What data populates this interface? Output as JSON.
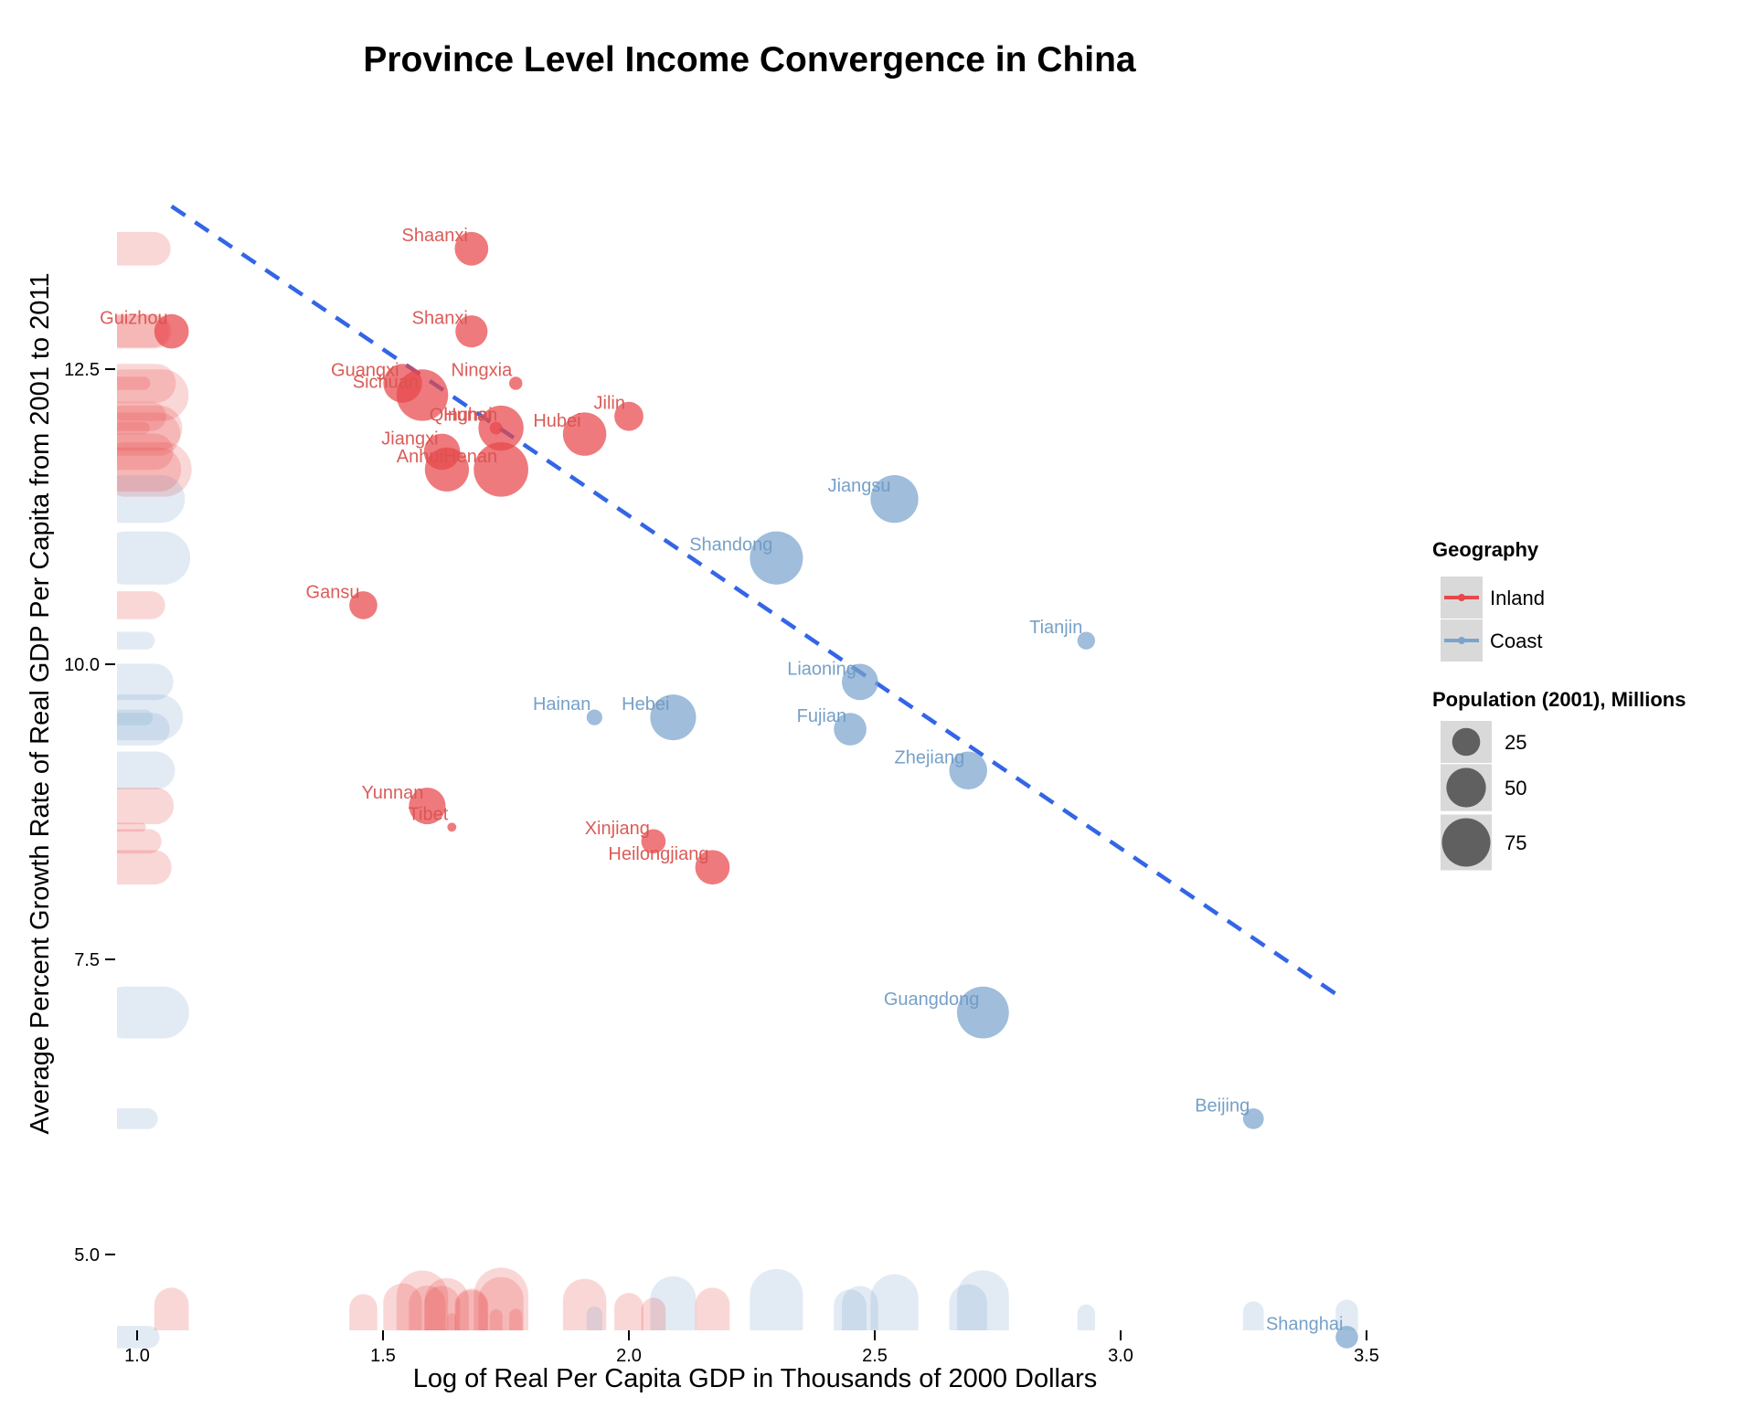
{
  "chart_data": {
    "type": "scatter",
    "title": "Province Level Income Convergence in China",
    "xlabel": "Log of Real Per Capita GDP in Thousands of 2000 Dollars",
    "ylabel": "Average Percent Growth Rate of Real GDP Per Capita from 2001 to 2011",
    "xlim": [
      0.95,
      3.5
    ],
    "ylim": [
      4.4,
      13.65
    ],
    "x_ticks": [
      "1.0",
      "1.5",
      "2.0",
      "2.5",
      "3.0",
      "3.5"
    ],
    "x_tick_values": [
      1.0,
      1.5,
      2.0,
      2.5,
      3.0,
      3.5
    ],
    "y_ticks": [
      "5.0",
      "7.5",
      "10.0",
      "12.5"
    ],
    "y_tick_values": [
      5.0,
      7.5,
      10.0,
      12.5
    ],
    "grid": false,
    "legend_position": "right",
    "colors": {
      "Inland": "#e8474b",
      "Coast": "#7ba4cd",
      "trend": "#3366e6"
    },
    "legend": {
      "color_title": "Geography",
      "color_items": [
        "Inland",
        "Coast"
      ],
      "size_title": "Population (2001), Millions",
      "size_items": [
        "25",
        "50",
        "75"
      ],
      "size_values": [
        25,
        50,
        75
      ]
    },
    "trend_line": {
      "style": "dashed",
      "x": [
        1.07,
        3.44
      ],
      "y": [
        13.88,
        7.2
      ]
    },
    "points": [
      {
        "label": "Shaanxi",
        "x": 1.68,
        "y": 13.52,
        "pop": 36,
        "region": "Inland"
      },
      {
        "label": "Shanxi",
        "x": 1.68,
        "y": 12.82,
        "pop": 33,
        "region": "Inland"
      },
      {
        "label": "Guizhou",
        "x": 1.07,
        "y": 12.82,
        "pop": 38,
        "region": "Inland"
      },
      {
        "label": "Ningxia",
        "x": 1.77,
        "y": 12.38,
        "pop": 5.6,
        "region": "Inland"
      },
      {
        "label": "Jilin",
        "x": 2.0,
        "y": 12.1,
        "pop": 27,
        "region": "Inland"
      },
      {
        "label": "Guangxi",
        "x": 1.54,
        "y": 12.38,
        "pop": 48,
        "region": "Inland"
      },
      {
        "label": "Sichuan",
        "x": 1.58,
        "y": 12.28,
        "pop": 85,
        "region": "Inland"
      },
      {
        "label": "Qinghai",
        "x": 1.73,
        "y": 12.0,
        "pop": 5.2,
        "region": "Inland"
      },
      {
        "label": "Hunan",
        "x": 1.74,
        "y": 12.0,
        "pop": 65,
        "region": "Inland"
      },
      {
        "label": "Hubei",
        "x": 1.91,
        "y": 11.95,
        "pop": 60,
        "region": "Inland"
      },
      {
        "label": "Jiangxi",
        "x": 1.62,
        "y": 11.8,
        "pop": 42,
        "region": "Inland"
      },
      {
        "label": "Anhui",
        "x": 1.63,
        "y": 11.65,
        "pop": 62,
        "region": "Inland"
      },
      {
        "label": "Henan",
        "x": 1.74,
        "y": 11.65,
        "pop": 95,
        "region": "Inland"
      },
      {
        "label": "Jiangsu",
        "x": 2.54,
        "y": 11.4,
        "pop": 73,
        "region": "Coast"
      },
      {
        "label": "Shandong",
        "x": 2.3,
        "y": 10.9,
        "pop": 90,
        "region": "Coast"
      },
      {
        "label": "Gansu",
        "x": 1.46,
        "y": 10.5,
        "pop": 25,
        "region": "Inland"
      },
      {
        "label": "Tianjin",
        "x": 2.93,
        "y": 10.2,
        "pop": 10,
        "region": "Coast"
      },
      {
        "label": "Liaoning",
        "x": 2.47,
        "y": 9.85,
        "pop": 42,
        "region": "Coast"
      },
      {
        "label": "Hainan",
        "x": 1.93,
        "y": 9.55,
        "pop": 7.9,
        "region": "Coast"
      },
      {
        "label": "Hebei",
        "x": 2.09,
        "y": 9.55,
        "pop": 67,
        "region": "Coast"
      },
      {
        "label": "Fujian",
        "x": 2.45,
        "y": 9.45,
        "pop": 34,
        "region": "Coast"
      },
      {
        "label": "Zhejiang",
        "x": 2.69,
        "y": 9.1,
        "pop": 46,
        "region": "Coast"
      },
      {
        "label": "Yunnan",
        "x": 1.59,
        "y": 8.8,
        "pop": 43,
        "region": "Inland"
      },
      {
        "label": "Tibet",
        "x": 1.64,
        "y": 8.62,
        "pop": 2.6,
        "region": "Inland"
      },
      {
        "label": "Xinjiang",
        "x": 2.05,
        "y": 8.5,
        "pop": 19,
        "region": "Inland"
      },
      {
        "label": "Heilongjiang",
        "x": 2.17,
        "y": 8.28,
        "pop": 38,
        "region": "Inland"
      },
      {
        "label": "Guangdong",
        "x": 2.72,
        "y": 7.05,
        "pop": 86,
        "region": "Coast"
      },
      {
        "label": "Beijing",
        "x": 3.27,
        "y": 6.15,
        "pop": 13.8,
        "region": "Coast"
      },
      {
        "label": "Shanghai",
        "x": 3.46,
        "y": 4.3,
        "pop": 16.1,
        "region": "Coast"
      }
    ]
  }
}
